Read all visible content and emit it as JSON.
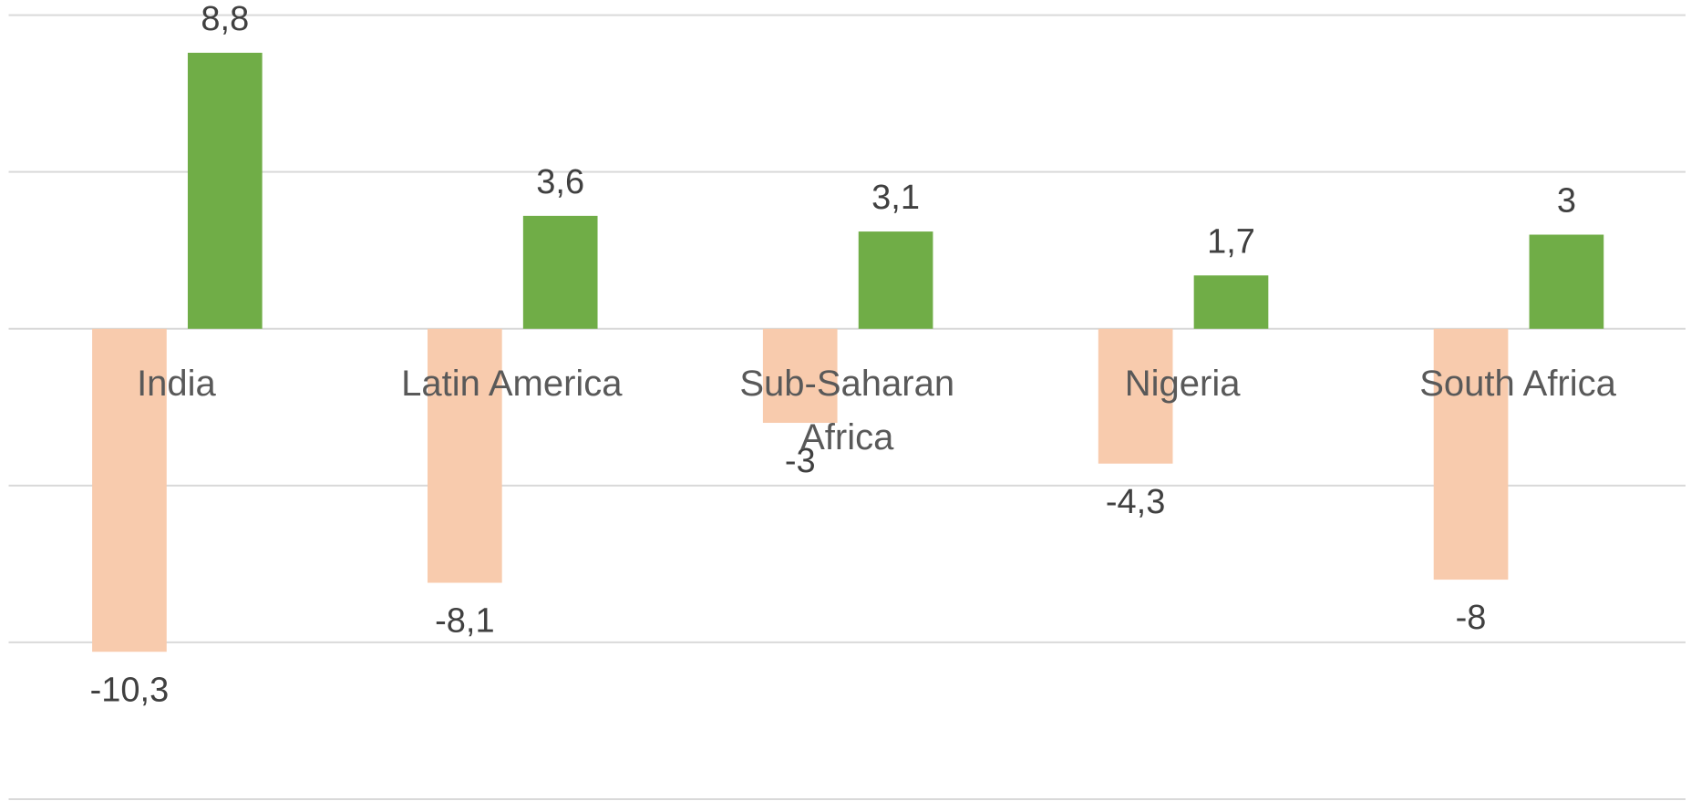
{
  "chart_data": {
    "type": "bar",
    "categories": [
      "India",
      "Latin America",
      "Sub-Saharan Africa",
      "Nigeria",
      "South Africa"
    ],
    "series": [
      {
        "color": "#f8cbad",
        "values": [
          -10.3,
          -8.1,
          -3,
          -4.3,
          -8
        ],
        "value_labels": [
          "-10,3",
          "-8,1",
          "-3",
          "-4,3",
          "-8"
        ]
      },
      {
        "color": "#70ad47",
        "values": [
          8.8,
          3.6,
          3.1,
          1.7,
          3
        ],
        "value_labels": [
          "8,8",
          "3,6",
          "3,1",
          "1,7",
          "3"
        ]
      }
    ],
    "ylim": [
      -15,
      10
    ],
    "yticks": [
      -15,
      -10,
      -5,
      0,
      5,
      10
    ],
    "grid": true
  }
}
